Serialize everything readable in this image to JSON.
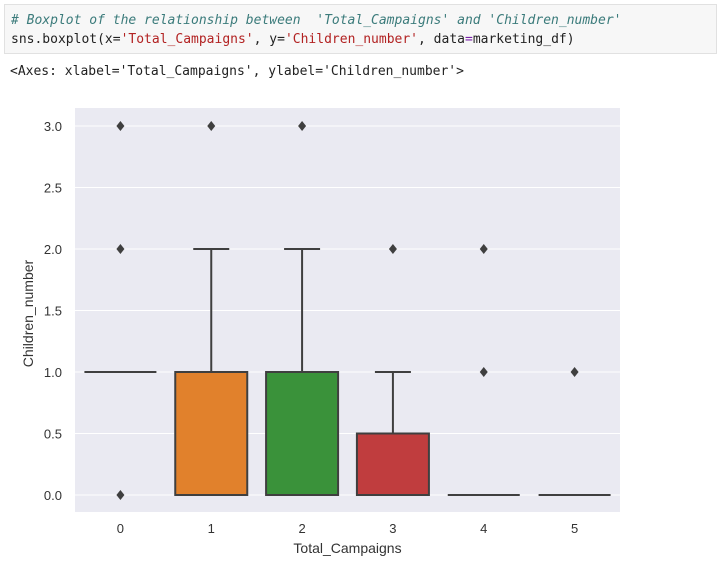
{
  "code_cell": {
    "comment": "# Boxplot of the relationship between  'Total_Campaigns' and 'Children_number'",
    "call_prefix": "sns.boxplot(x=",
    "arg_x": "'Total_Campaigns'",
    "sep1": ", y=",
    "arg_y": "'Children_number'",
    "sep2": ", data",
    "eq": "=",
    "data_name": "marketing_df)"
  },
  "output_text": "<Axes: xlabel='Total_Campaigns', ylabel='Children_number'>",
  "colors": {
    "plot_background": "#eaeaf2",
    "grid": "#ffffff",
    "line": "#3f3f3f"
  },
  "chart_data": {
    "type": "box",
    "xlabel": "Total_Campaigns",
    "ylabel": "Children_number",
    "categories": [
      "0",
      "1",
      "2",
      "3",
      "4",
      "5"
    ],
    "ylim": [
      -0.15,
      3.1
    ],
    "yticks": [
      "0.0",
      "0.5",
      "1.0",
      "1.5",
      "2.0",
      "2.5",
      "3.0"
    ],
    "ytick_values": [
      0,
      0.5,
      1.0,
      1.5,
      2.0,
      2.5,
      3.0
    ],
    "grid": true,
    "boxes": [
      {
        "category": "0",
        "q1": 1,
        "median": 1,
        "q3": 1,
        "whisker_low": 1,
        "whisker_high": 1,
        "outliers": [
          0,
          2,
          3
        ],
        "color": "#3274a1"
      },
      {
        "category": "1",
        "q1": 0,
        "median": 1,
        "q3": 1,
        "whisker_low": 0,
        "whisker_high": 2,
        "outliers": [
          3
        ],
        "color": "#e1812c"
      },
      {
        "category": "2",
        "q1": 0,
        "median": 1,
        "q3": 1,
        "whisker_low": 0,
        "whisker_high": 2,
        "outliers": [
          3
        ],
        "color": "#3a923a"
      },
      {
        "category": "3",
        "q1": 0,
        "median": 0,
        "q3": 0.5,
        "whisker_low": 0,
        "whisker_high": 1,
        "outliers": [
          2
        ],
        "color": "#c03d3e"
      },
      {
        "category": "4",
        "q1": 0,
        "median": 0,
        "q3": 0,
        "whisker_low": 0,
        "whisker_high": 0,
        "outliers": [
          1,
          2
        ],
        "color": "#9372b2"
      },
      {
        "category": "5",
        "q1": 0,
        "median": 0,
        "q3": 0,
        "whisker_low": 0,
        "whisker_high": 0,
        "outliers": [
          1
        ],
        "color": "#845b53"
      }
    ]
  }
}
